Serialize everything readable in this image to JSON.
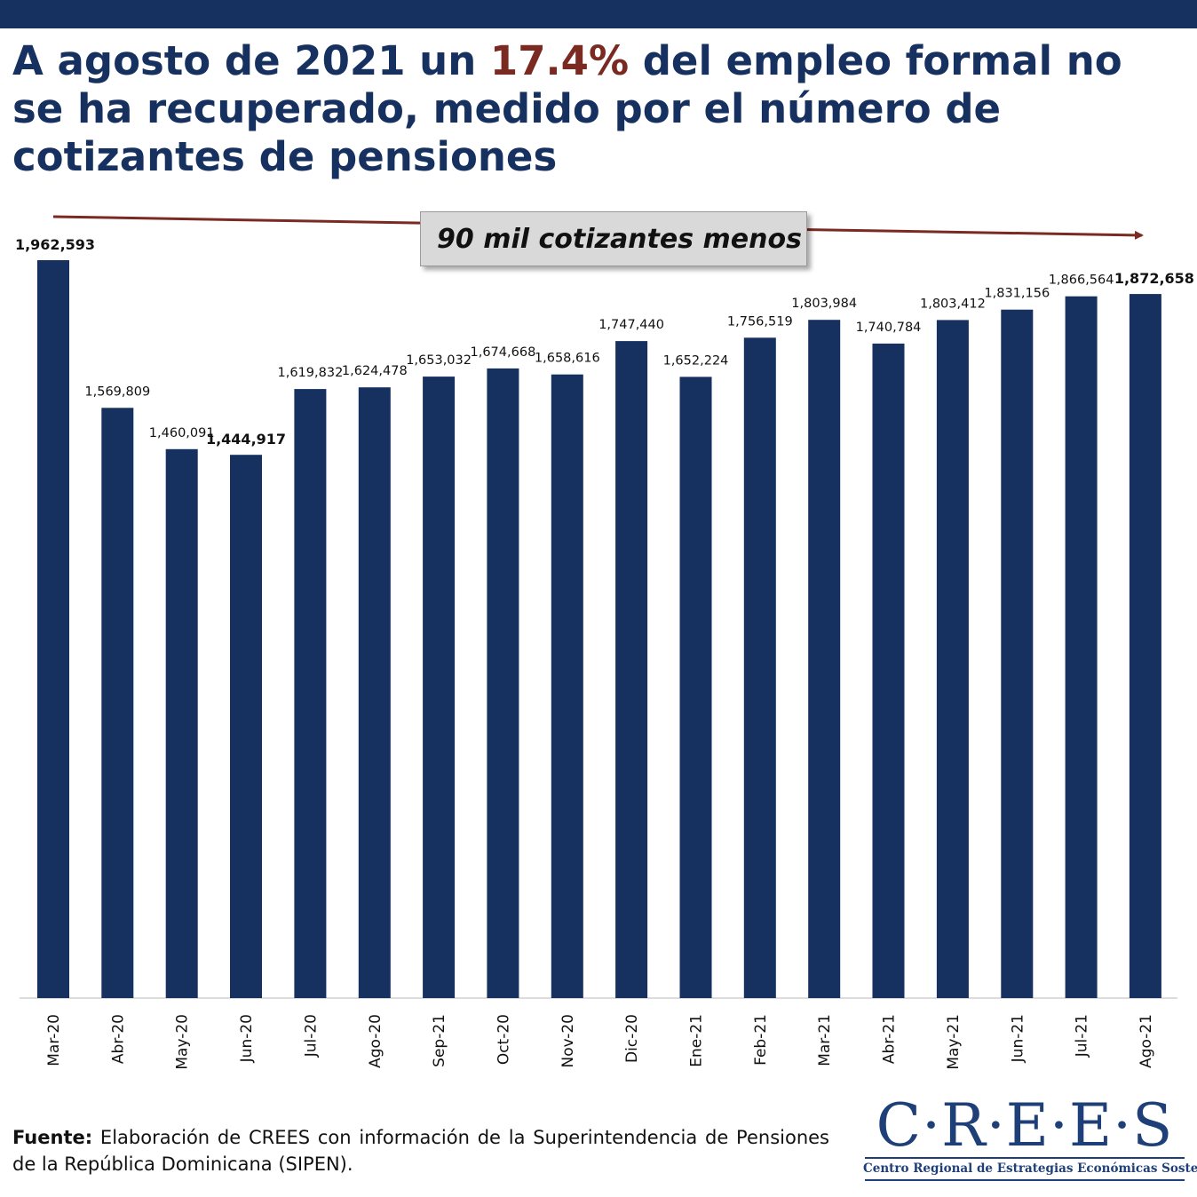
{
  "header": {
    "title_pre": "A agosto de 2021 un ",
    "title_highlight": "17.4%",
    "title_post": " del empleo formal no se ha recuperado, medido por el número de cotizantes de pensiones"
  },
  "callout": {
    "text": "90 mil cotizantes menos"
  },
  "chart_data": {
    "type": "bar",
    "title": "",
    "xlabel": "",
    "ylabel": "",
    "ylim": [
      0,
      1962593
    ],
    "grid": false,
    "categories": [
      "Mar-20",
      "Abr-20",
      "May-20",
      "Jun-20",
      "Jul-20",
      "Ago-20",
      "Sep-21",
      "Oct-20",
      "Nov-20",
      "Dic-20",
      "Ene-21",
      "Feb-21",
      "Mar-21",
      "Abr-21",
      "May-21",
      "Jun-21",
      "Jul-21",
      "Ago-21"
    ],
    "values": [
      1962593,
      1569809,
      1460091,
      1444917,
      1619832,
      1624478,
      1653032,
      1674668,
      1658616,
      1747440,
      1652224,
      1756519,
      1803984,
      1740784,
      1803412,
      1831156,
      1866564,
      1872658
    ],
    "labels": [
      "1,962,593",
      "1,569,809",
      "1,460,091",
      "1,444,917",
      "1,619,832",
      "1,624,478",
      "1,653,032",
      "1,674,668",
      "1,658,616",
      "1,747,440",
      "1,652,224",
      "1,756,519",
      "1,803,984",
      "1,740,784",
      "1,803,412",
      "1,831,156",
      "1,866,564",
      "1,872,658"
    ],
    "bold_labels": [
      0,
      3,
      17
    ],
    "bar_color": "#16305f",
    "arrow_color": "#7b2a22"
  },
  "footer": {
    "source_label": "Fuente:",
    "source_text": " Elaboración de CREES con información de la Superintendencia de Pensiones de la República Dominicana (SIPEN)."
  },
  "logo": {
    "wordmark": "C·R·E·E·S",
    "subtitle": "Centro Regional de Estrategias Económicas Sostenibles"
  }
}
